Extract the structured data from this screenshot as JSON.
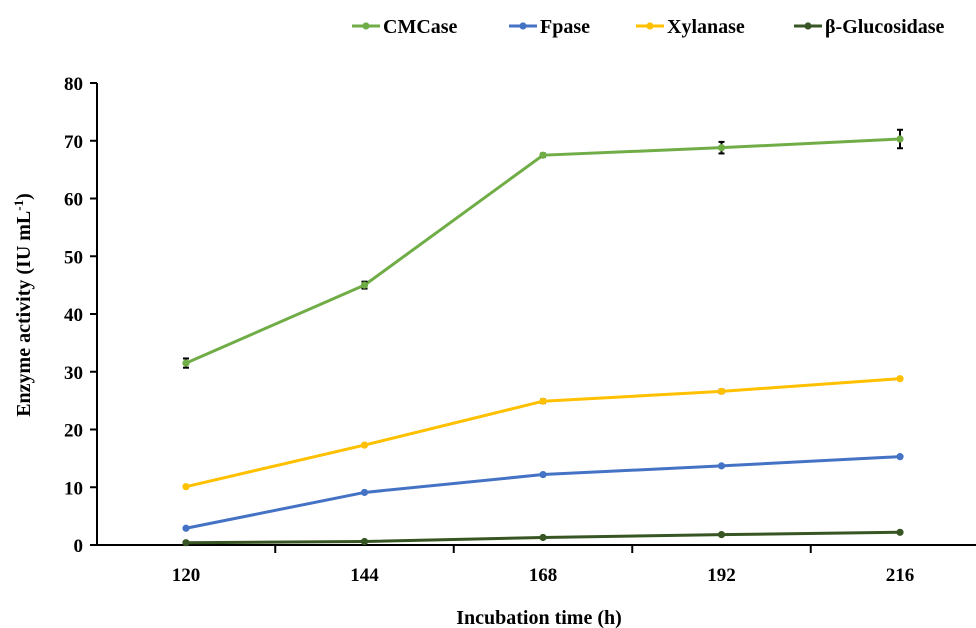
{
  "chart_data": {
    "type": "line",
    "x": [
      120,
      144,
      168,
      192,
      216
    ],
    "xlabel": "Incubation time (h)",
    "ylabel_main": "Enzyme activity (IU mL",
    "ylabel_sup": "-1",
    "ylabel_close": ")",
    "ylim": [
      0,
      80
    ],
    "yticks": [
      0,
      10,
      20,
      30,
      40,
      50,
      60,
      70,
      80
    ],
    "grid": false,
    "legend_position": "top",
    "series": [
      {
        "name": "CMCase",
        "color": "#70ad47",
        "values": [
          31.5,
          45.0,
          67.5,
          68.8,
          70.3
        ],
        "errors": [
          0.8,
          0.6,
          0.3,
          1.0,
          1.6
        ]
      },
      {
        "name": "Fpase",
        "color": "#4472c4",
        "values": [
          2.9,
          9.1,
          12.2,
          13.7,
          15.3
        ],
        "errors": [
          0,
          0,
          0,
          0,
          0
        ]
      },
      {
        "name": "Xylanase",
        "color": "#ffc000",
        "values": [
          10.1,
          17.3,
          24.9,
          26.6,
          28.8
        ],
        "errors": [
          0,
          0,
          0.3,
          0.3,
          0
        ]
      },
      {
        "name": "β-Glucosidase",
        "color": "#375623",
        "values": [
          0.4,
          0.6,
          1.3,
          1.8,
          2.2
        ],
        "errors": [
          0,
          0,
          0,
          0,
          0
        ]
      }
    ]
  }
}
